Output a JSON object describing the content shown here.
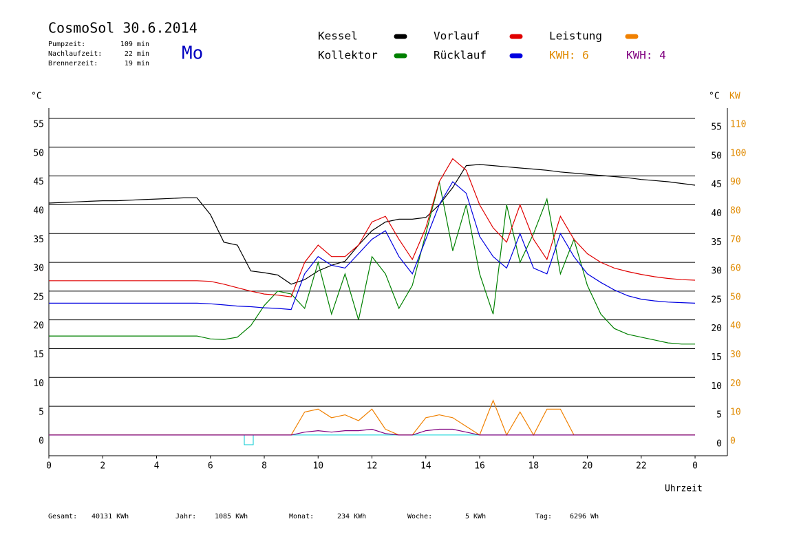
{
  "chart_data": {
    "type": "line",
    "title": "CosmoSol 30.6.2014",
    "day": "Mo",
    "stats": [
      {
        "label": "Pumpzeit:",
        "value": "109 min"
      },
      {
        "label": "Nachlaufzeit:",
        "value": "22 min"
      },
      {
        "label": "Brennerzeit:",
        "value": "19 min"
      }
    ],
    "annotations": [
      {
        "text": "KWH: 6",
        "color": "#e08a00"
      },
      {
        "text": "KWH: 4",
        "color": "#800080"
      }
    ],
    "ylabel": "°C",
    "ylabel_right": "°C",
    "y2label": "KW",
    "xlabel": "Uhrzeit",
    "footer": [
      {
        "label": "Gesamt:",
        "value": "40131 KWh"
      },
      {
        "label": "Jahr:",
        "value": "1085 KWh"
      },
      {
        "label": "Monat:",
        "value": "234 KWh"
      },
      {
        "label": "Woche:",
        "value": "5 KWh"
      },
      {
        "label": "Tag:",
        "value": "6296 Wh"
      }
    ],
    "xlim": [
      0,
      25.2
    ],
    "xticks": [
      0,
      2,
      4,
      6,
      8,
      10,
      12,
      14,
      16,
      18,
      20,
      22,
      {
        "value": 24,
        "label": "0"
      }
    ],
    "ylim": [
      -3.6,
      56.8
    ],
    "yticks": [
      0,
      5,
      10,
      15,
      20,
      25,
      30,
      35,
      40,
      45,
      50,
      55
    ],
    "y2lim": [
      -7.2,
      113.6
    ],
    "y2ticks": [
      0,
      10,
      20,
      30,
      40,
      50,
      60,
      70,
      80,
      90,
      100,
      110
    ],
    "grid": true,
    "x": [
      0,
      0.5,
      1,
      1.5,
      2,
      2.5,
      3,
      3.5,
      4,
      4.5,
      5,
      5.5,
      6,
      6.5,
      7,
      7.5,
      8,
      8.5,
      9,
      9.5,
      10,
      10.5,
      11,
      11.5,
      12,
      12.5,
      13,
      13.5,
      14,
      14.5,
      15,
      15.5,
      16,
      16.5,
      17,
      17.5,
      18,
      18.5,
      19,
      19.5,
      20,
      20.5,
      21,
      21.5,
      22,
      22.5,
      23,
      23.5,
      24
    ],
    "series": [
      {
        "name": "Kessel",
        "color": "#000000",
        "values": [
          40.3,
          40.4,
          40.5,
          40.6,
          40.7,
          40.7,
          40.8,
          40.9,
          41,
          41.1,
          41.2,
          41.2,
          38.3,
          33.5,
          33,
          28.5,
          28.2,
          27.8,
          26.2,
          27,
          28.5,
          29.5,
          30.2,
          33,
          35.5,
          37,
          37.5,
          37.5,
          37.8,
          40,
          43,
          46.8,
          47,
          46.8,
          46.6,
          46.4,
          46.2,
          46,
          45.7,
          45.5,
          45.3,
          45.1,
          44.9,
          44.7,
          44.4,
          44.2,
          44,
          43.7,
          43.4
        ]
      },
      {
        "name": "Kollektor",
        "color": "#008000",
        "values": [
          17.2,
          17.2,
          17.2,
          17.2,
          17.2,
          17.2,
          17.2,
          17.2,
          17.2,
          17.2,
          17.2,
          17.2,
          16.7,
          16.6,
          17,
          19,
          22.5,
          25,
          24.5,
          22,
          30,
          21,
          28,
          20,
          31,
          28,
          22,
          26,
          35,
          44,
          32,
          40,
          28,
          21,
          40,
          30,
          35,
          41,
          28,
          34,
          26,
          21,
          18.5,
          17.5,
          17,
          16.5,
          16,
          15.8,
          15.8
        ]
      },
      {
        "name": "Vorlauf",
        "color": "#e00000",
        "values": [
          26.8,
          26.8,
          26.8,
          26.8,
          26.8,
          26.8,
          26.8,
          26.8,
          26.8,
          26.8,
          26.8,
          26.8,
          26.7,
          26.2,
          25.6,
          25,
          24.5,
          24.3,
          24,
          30,
          33,
          31,
          31,
          33,
          37,
          38,
          34,
          30.5,
          36,
          44,
          48,
          46,
          40,
          36,
          33.5,
          40,
          34,
          30.5,
          38,
          34,
          31.5,
          30,
          29,
          28.4,
          27.9,
          27.5,
          27.2,
          27,
          26.9
        ]
      },
      {
        "name": "Rücklauf",
        "color": "#0000e0",
        "values": [
          22.9,
          22.9,
          22.9,
          22.9,
          22.9,
          22.9,
          22.9,
          22.9,
          22.9,
          22.9,
          22.9,
          22.9,
          22.8,
          22.6,
          22.4,
          22.3,
          22.1,
          22,
          21.8,
          28,
          31,
          29.5,
          29,
          31.5,
          34,
          35.5,
          31,
          28,
          34,
          40,
          44,
          42,
          34.5,
          31,
          29,
          35,
          29,
          28,
          35,
          31,
          28,
          26.5,
          25.2,
          24.2,
          23.6,
          23.3,
          23.1,
          23,
          22.9
        ]
      },
      {
        "name": "Leistung",
        "color": "#f08000",
        "axis": "y2",
        "values": [
          0,
          0,
          0,
          0,
          0,
          0,
          0,
          0,
          0,
          0,
          0,
          0,
          0,
          0,
          0,
          0,
          0,
          0,
          0,
          8,
          9,
          6,
          7,
          5,
          9,
          2,
          0,
          0,
          6,
          7,
          6,
          3,
          0,
          12,
          0,
          8,
          0,
          9,
          9,
          0,
          0,
          0,
          0,
          0,
          0,
          0,
          0,
          0,
          0
        ]
      },
      {
        "color": "#800080",
        "axis": "y2",
        "values": [
          0,
          0,
          0,
          0,
          0,
          0,
          0,
          0,
          0,
          0,
          0,
          0,
          0,
          0,
          0,
          0,
          0,
          0,
          0,
          1,
          1.5,
          1,
          1.5,
          1.5,
          2,
          0.5,
          0,
          0,
          1.5,
          2,
          2,
          1,
          0,
          0,
          0,
          0,
          0,
          0,
          0,
          0,
          0,
          0,
          0,
          0,
          0,
          0,
          0,
          0,
          0
        ]
      }
    ]
  }
}
